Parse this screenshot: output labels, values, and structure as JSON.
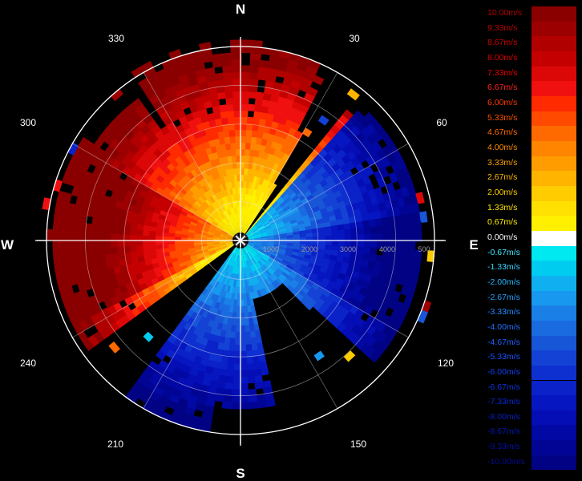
{
  "radar": {
    "directions": {
      "north": "N",
      "south": "S",
      "east": "E",
      "west": "W"
    },
    "azimuth_labels": [
      "30",
      "60",
      "120",
      "150",
      "210",
      "240",
      "300",
      "330"
    ],
    "range_labels": [
      "1000",
      "2000",
      "3000",
      "4000",
      "500"
    ],
    "rings": 5
  },
  "legend": {
    "entries": [
      {
        "label": "10.00m/s",
        "color": "#8a0000",
        "text_color": "#b00000"
      },
      {
        "label": "9.33m/s",
        "color": "#9c0000",
        "text_color": "#c00000"
      },
      {
        "label": "8.67m/s",
        "color": "#b00000",
        "text_color": "#d00000"
      },
      {
        "label": "8.00m/s",
        "color": "#c40000",
        "text_color": "#e00000"
      },
      {
        "label": "7.33m/s",
        "color": "#dc0808",
        "text_color": "#f00000"
      },
      {
        "label": "6.67m/s",
        "color": "#f01010",
        "text_color": "#ff2020"
      },
      {
        "label": "6.00m/s",
        "color": "#ff2a00",
        "text_color": "#ff3a00"
      },
      {
        "label": "5.33m/s",
        "color": "#ff4a00",
        "text_color": "#ff5000"
      },
      {
        "label": "4.67m/s",
        "color": "#ff6a00",
        "text_color": "#ff6a00"
      },
      {
        "label": "4.00m/s",
        "color": "#ff8400",
        "text_color": "#ff8a00"
      },
      {
        "label": "3.33m/s",
        "color": "#ff9c00",
        "text_color": "#ffa000"
      },
      {
        "label": "2.67m/s",
        "color": "#ffb400",
        "text_color": "#ffb800"
      },
      {
        "label": "2.00m/s",
        "color": "#ffcc00",
        "text_color": "#ffd000"
      },
      {
        "label": "1.33m/s",
        "color": "#ffe000",
        "text_color": "#ffe400"
      },
      {
        "label": "0.67m/s",
        "color": "#fff000",
        "text_color": "#fff000"
      },
      {
        "label": "0.00m/s",
        "color": "#ffffff",
        "text_color": "#ffffff"
      },
      {
        "label": "-0.67m/s",
        "color": "#00e8f0",
        "text_color": "#40e8ff"
      },
      {
        "label": "-1.33m/s",
        "color": "#00ccf0",
        "text_color": "#30d0ff"
      },
      {
        "label": "-2.00m/s",
        "color": "#10b0f0",
        "text_color": "#20b8ff"
      },
      {
        "label": "-2.67m/s",
        "color": "#1898ee",
        "text_color": "#20a0ff"
      },
      {
        "label": "-3.33m/s",
        "color": "#1a80e8",
        "text_color": "#2088ff"
      },
      {
        "label": "-4.00m/s",
        "color": "#1a6ae0",
        "text_color": "#2070ff"
      },
      {
        "label": "-4.67m/s",
        "color": "#1856d8",
        "text_color": "#2060ff"
      },
      {
        "label": "-5.33m/s",
        "color": "#1442d4",
        "text_color": "#1850ff"
      },
      {
        "label": "-6.00m/s",
        "color": "#0e30d0",
        "text_color": "#1040f0"
      },
      {
        "label": "-6.67m/s",
        "color": "#0a22c8",
        "text_color": "#0a34e0"
      },
      {
        "label": "-7.33m/s",
        "color": "#0616c0",
        "text_color": "#0828d0"
      },
      {
        "label": "-8.00m/s",
        "color": "#040eb4",
        "text_color": "#0620c0"
      },
      {
        "label": "-8.67m/s",
        "color": "#0208a4",
        "text_color": "#0418b0"
      },
      {
        "label": "-9.33m/s",
        "color": "#020594",
        "text_color": "#0310a0"
      },
      {
        "label": "-10.00m/s",
        "color": "#010384",
        "text_color": "#020c90"
      }
    ]
  }
}
